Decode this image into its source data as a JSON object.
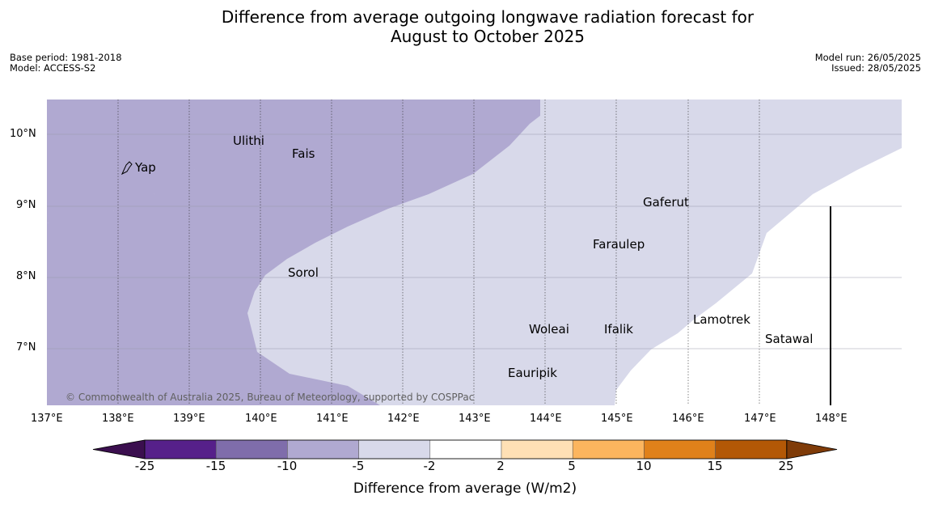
{
  "title_line1": "Difference from average outgoing longwave radiation forecast for",
  "title_line2": "August to October 2025",
  "meta_left": {
    "base_period": "Base period: 1981-2018",
    "model": "Model: ACCESS-S2"
  },
  "meta_right": {
    "model_run": "Model run: 26/05/2025",
    "issued": "Issued: 28/05/2025"
  },
  "lon_ticks": [
    "137°E",
    "138°E",
    "139°E",
    "140°E",
    "141°E",
    "142°E",
    "143°E",
    "144°E",
    "145°E",
    "146°E",
    "147°E",
    "148°E"
  ],
  "lat_ticks": [
    "10°N",
    "9°N",
    "8°N",
    "7°N"
  ],
  "places": [
    "Yap",
    "Ulithi",
    "Fais",
    "Gaferut",
    "Faraulep",
    "Sorol",
    "Lamotrek",
    "Woleai",
    "Ifalik",
    "Satawal",
    "Eauripik"
  ],
  "copyright": "© Commonwealth of Australia 2025, Bureau of Meteorology, supported by COSPPac",
  "colorbar": {
    "tick_labels": [
      "-25",
      "-15",
      "-10",
      "-5",
      "-2",
      "2",
      "5",
      "10",
      "15",
      "25"
    ],
    "colors": [
      "#3b0f4f",
      "#56208a",
      "#7f6dab",
      "#b0a9d1",
      "#d8d9ea",
      "#ffffff",
      "#ffe0b5",
      "#fcb55e",
      "#e0811a",
      "#b35806",
      "#7f3b08"
    ],
    "label": "Difference from average (W/m2)"
  },
  "map_colors": {
    "band_-10_-5": "#b0a9d1",
    "band_-5_-2": "#d8d9ea",
    "band_-2_2": "#ffffff"
  }
}
